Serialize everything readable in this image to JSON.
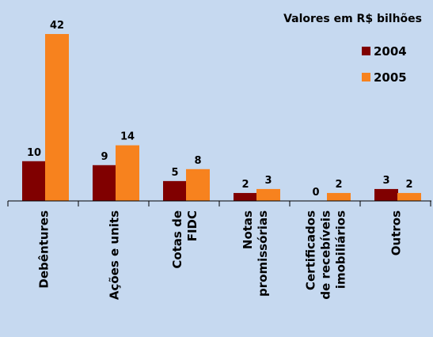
{
  "chart_data": {
    "type": "bar",
    "title": "Valores em R$ bilhões",
    "categories": [
      [
        "Debêntures"
      ],
      [
        "Ações e units"
      ],
      [
        "Cotas de",
        "FIDC"
      ],
      [
        "Notas",
        "promissórias"
      ],
      [
        "Certificados",
        "de recebíveis",
        "imobiliários"
      ],
      [
        "Outros"
      ]
    ],
    "series": [
      {
        "name": "2004",
        "color": "#800000",
        "values": [
          10,
          9,
          5,
          2,
          0,
          3
        ]
      },
      {
        "name": "2005",
        "color": "#f7821e",
        "values": [
          42,
          14,
          8,
          3,
          2,
          2
        ]
      }
    ],
    "legend": "upper right"
  }
}
